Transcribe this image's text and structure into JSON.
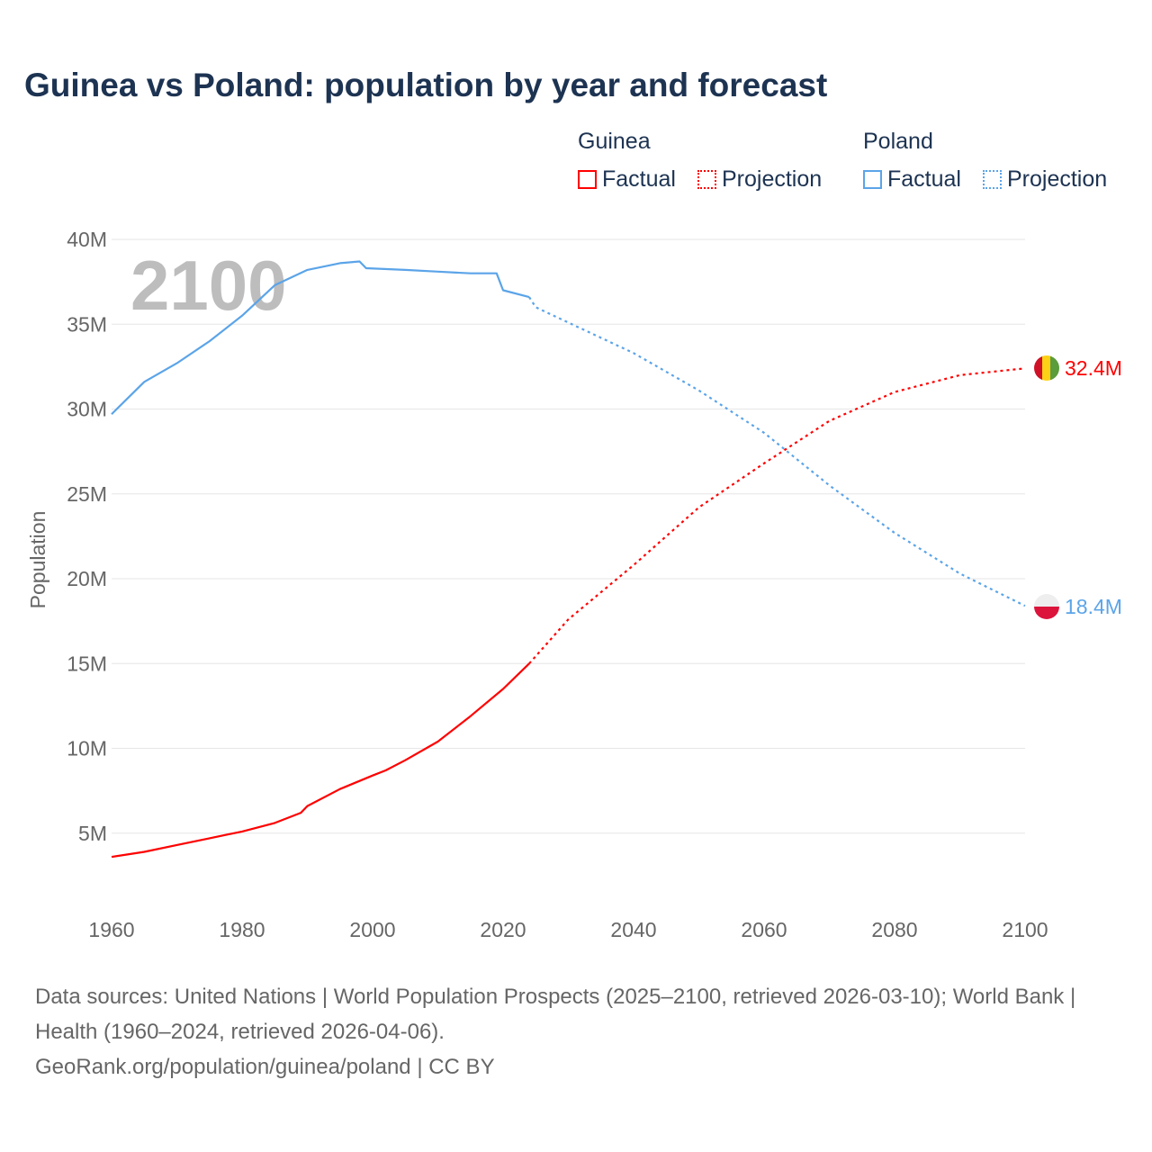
{
  "title": "Guinea vs Poland: population by year and forecast",
  "legend": {
    "groups": [
      {
        "name": "Guinea",
        "factual": "Factual",
        "projection": "Projection",
        "color": "#ff0000"
      },
      {
        "name": "Poland",
        "factual": "Factual",
        "projection": "Projection",
        "color": "#5ba4e8"
      }
    ]
  },
  "source": {
    "line1": "Data sources: United Nations | World Population Prospects (2025–2100, retrieved 2026-03-10); World Bank | Health (1960–2024, retrieved 2026-04-06).",
    "line2": "GeoRank.org/population/guinea/poland | CC BY"
  },
  "chart_data": {
    "type": "line",
    "title": "Guinea vs Poland: population by year and forecast",
    "xlabel": "",
    "ylabel": "Population",
    "xlim": [
      1960,
      2100
    ],
    "ylim": [
      0,
      40
    ],
    "x_ticks": [
      "1960",
      "1980",
      "2000",
      "2020",
      "2040",
      "2060",
      "2080",
      "2100"
    ],
    "y_ticks": [
      {
        "v": 5,
        "label": "5M"
      },
      {
        "v": 10,
        "label": "10M"
      },
      {
        "v": 15,
        "label": "15M"
      },
      {
        "v": 20,
        "label": "20M"
      },
      {
        "v": 25,
        "label": "25M"
      },
      {
        "v": 30,
        "label": "30M"
      },
      {
        "v": 35,
        "label": "35M"
      },
      {
        "v": 40,
        "label": "40M"
      }
    ],
    "watermark_year": "2100",
    "grid": true,
    "units": "millions",
    "series": [
      {
        "name": "Guinea",
        "color": "#ff0000",
        "end_label": "32.4M",
        "factual": [
          [
            1960,
            3.6
          ],
          [
            1965,
            3.9
          ],
          [
            1970,
            4.3
          ],
          [
            1975,
            4.7
          ],
          [
            1980,
            5.1
          ],
          [
            1985,
            5.6
          ],
          [
            1989,
            6.2
          ],
          [
            1990,
            6.6
          ],
          [
            1995,
            7.6
          ],
          [
            2000,
            8.4
          ],
          [
            2002,
            8.7
          ],
          [
            2005,
            9.3
          ],
          [
            2010,
            10.4
          ],
          [
            2015,
            11.9
          ],
          [
            2020,
            13.5
          ],
          [
            2024,
            15.0
          ]
        ],
        "projection": [
          [
            2024,
            15.0
          ],
          [
            2030,
            17.6
          ],
          [
            2040,
            20.8
          ],
          [
            2050,
            24.2
          ],
          [
            2060,
            26.8
          ],
          [
            2070,
            29.3
          ],
          [
            2080,
            31.0
          ],
          [
            2090,
            32.0
          ],
          [
            2100,
            32.4
          ]
        ]
      },
      {
        "name": "Poland",
        "color": "#5ba4e8",
        "end_label": "18.4M",
        "factual": [
          [
            1960,
            29.7
          ],
          [
            1965,
            31.6
          ],
          [
            1970,
            32.7
          ],
          [
            1975,
            34.0
          ],
          [
            1980,
            35.5
          ],
          [
            1985,
            37.3
          ],
          [
            1990,
            38.2
          ],
          [
            1995,
            38.6
          ],
          [
            1998,
            38.7
          ],
          [
            1999,
            38.3
          ],
          [
            2005,
            38.2
          ],
          [
            2010,
            38.1
          ],
          [
            2015,
            38.0
          ],
          [
            2019,
            38.0
          ],
          [
            2020,
            37.0
          ],
          [
            2024,
            36.6
          ]
        ],
        "projection": [
          [
            2024,
            36.6
          ],
          [
            2025,
            36.0
          ],
          [
            2030,
            35.1
          ],
          [
            2040,
            33.3
          ],
          [
            2050,
            31.1
          ],
          [
            2060,
            28.6
          ],
          [
            2070,
            25.5
          ],
          [
            2080,
            22.7
          ],
          [
            2090,
            20.3
          ],
          [
            2100,
            18.4
          ]
        ]
      }
    ]
  }
}
